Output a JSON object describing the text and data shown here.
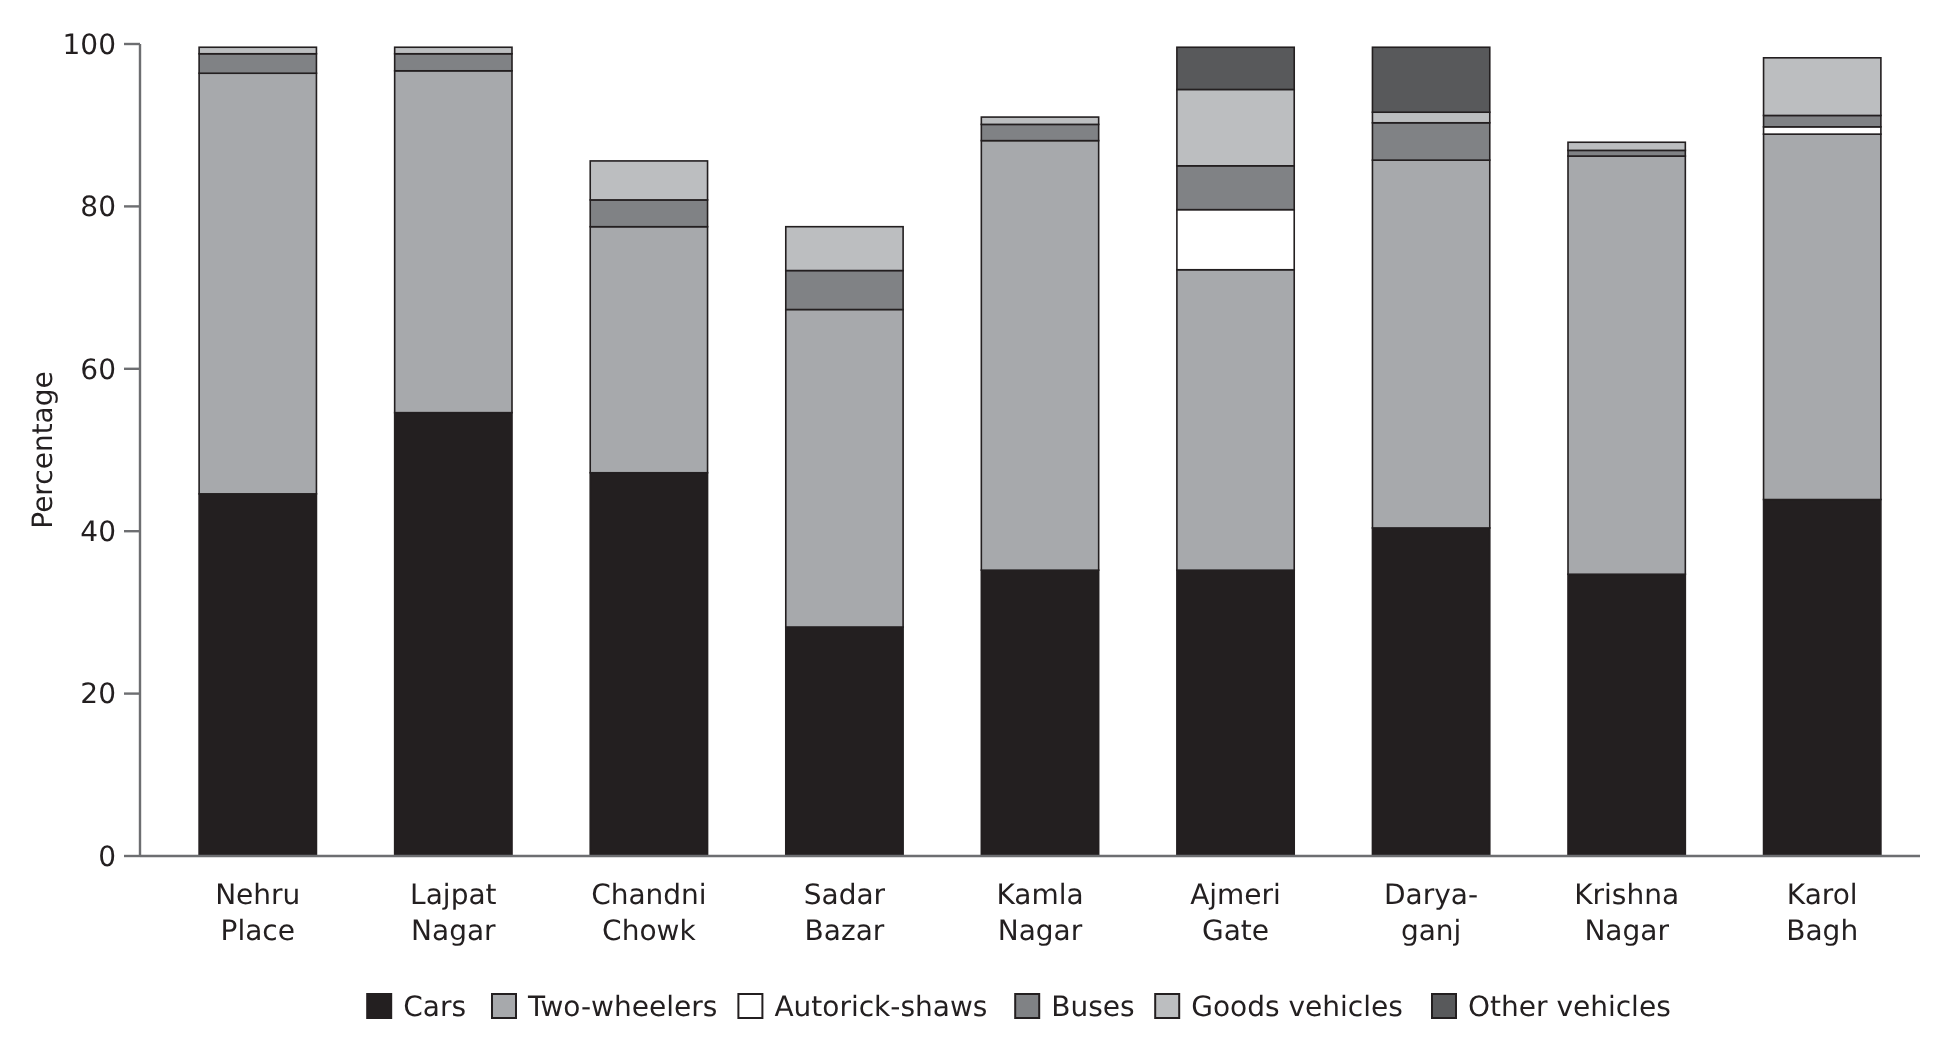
{
  "chart_data": {
    "type": "bar",
    "stacked": true,
    "ylabel": "Percentage",
    "categories": [
      "Nehru Place",
      "Lajpat Nagar",
      "Chandni Chowk",
      "Sadar Bazar",
      "Kamla Nagar",
      "Ajmeri Gate",
      "Darya-ganj",
      "Krishna Nagar",
      "Karol Bagh"
    ],
    "series": [
      {
        "name": "Cars",
        "color": "#231f20",
        "values": [
          44.6,
          54.6,
          47.2,
          28.2,
          35.2,
          35.2,
          40.4,
          34.7,
          43.9
        ]
      },
      {
        "name": "Two-wheelers",
        "color": "#a7a9ac",
        "values": [
          51.8,
          42.1,
          30.3,
          39.1,
          52.9,
          37.0,
          45.3,
          51.5,
          45.0
        ]
      },
      {
        "name": "Autorick-shaws",
        "color": "#ffffff",
        "values": [
          0,
          0,
          0,
          0,
          0,
          7.4,
          0,
          0,
          0.9
        ]
      },
      {
        "name": "Buses",
        "color": "#808285",
        "values": [
          2.4,
          2.1,
          3.3,
          4.8,
          2.0,
          5.4,
          4.6,
          0.7,
          1.4
        ]
      },
      {
        "name": "Goods vehicles",
        "color": "#bcbec0",
        "values": [
          0.8,
          0.8,
          4.8,
          5.4,
          0.9,
          9.4,
          1.3,
          1.0,
          7.1
        ]
      },
      {
        "name": "Other vehicles",
        "color": "#58595b",
        "values": [
          0,
          0,
          0,
          0,
          0,
          5.2,
          8.0,
          0,
          0
        ]
      }
    ],
    "ylim": [
      0,
      100
    ],
    "yticks": [
      0,
      20,
      40,
      60,
      80,
      100
    ],
    "legend": "bottom"
  }
}
